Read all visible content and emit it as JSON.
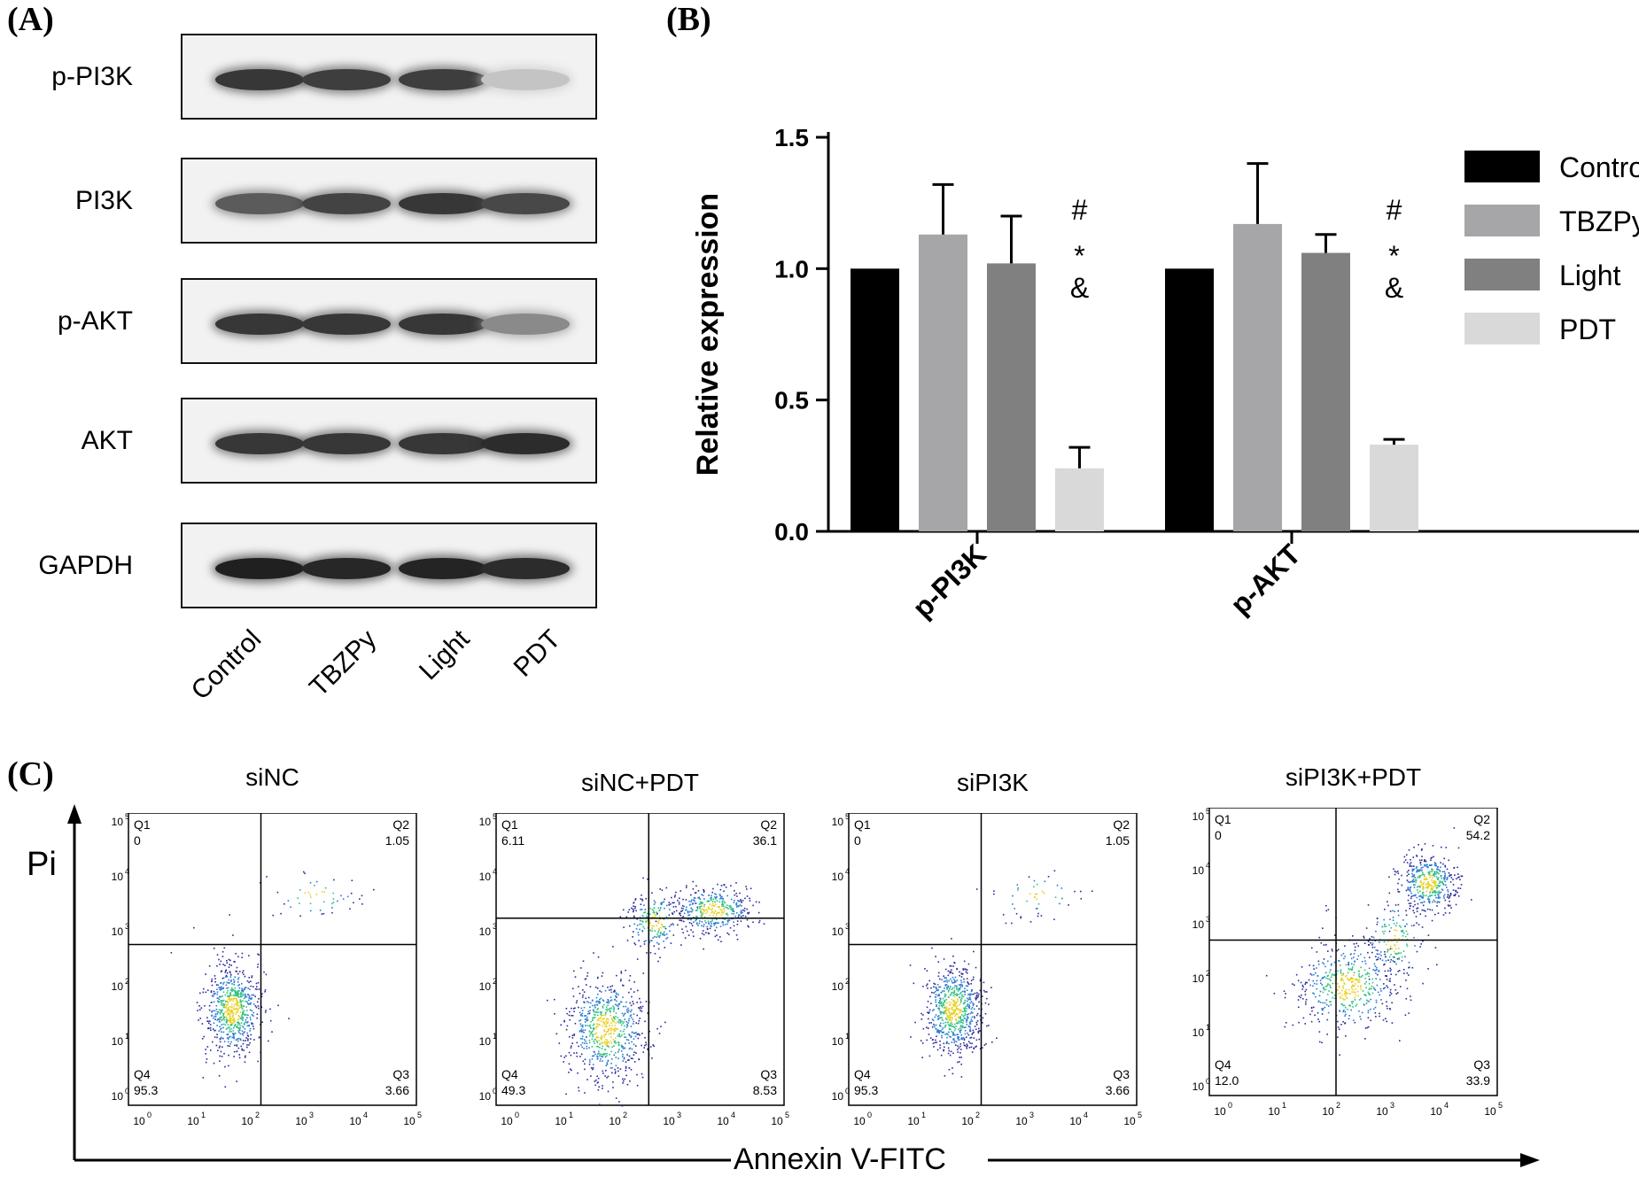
{
  "panels": {
    "a": "(A)",
    "b": "(B)",
    "c": "(C)"
  },
  "blot": {
    "rows": [
      {
        "label": "p-PI3K",
        "intensity": [
          0.85,
          0.82,
          0.82,
          0.25
        ]
      },
      {
        "label": "PI3K",
        "intensity": [
          0.7,
          0.8,
          0.85,
          0.78
        ]
      },
      {
        "label": "p-AKT",
        "intensity": [
          0.85,
          0.85,
          0.85,
          0.5
        ]
      },
      {
        "label": "AKT",
        "intensity": [
          0.85,
          0.85,
          0.85,
          0.9
        ]
      },
      {
        "label": "GAPDH",
        "intensity": [
          0.95,
          0.92,
          0.93,
          0.9
        ]
      }
    ],
    "lanes": [
      "Control",
      "TBZPy",
      "Light",
      "PDT"
    ]
  },
  "chart_data": {
    "type": "bar",
    "categories": [
      "p-PI3K",
      "p-AKT"
    ],
    "series": [
      {
        "name": "Control",
        "values": [
          1.0,
          1.0
        ],
        "errors": [
          0,
          0
        ],
        "color": "#000000"
      },
      {
        "name": "TBZPy",
        "values": [
          1.13,
          1.17
        ],
        "errors": [
          0.19,
          0.23
        ],
        "color": "#a6a6a8"
      },
      {
        "name": "Light",
        "values": [
          1.02,
          1.06
        ],
        "errors": [
          0.18,
          0.07
        ],
        "color": "#808080"
      },
      {
        "name": "PDT",
        "values": [
          0.24,
          0.33
        ],
        "errors": [
          0.08,
          0.02
        ],
        "color": "#d9d9d9"
      }
    ],
    "ylabel": "Relative expression",
    "ylim": [
      0,
      1.5
    ],
    "yticks": [
      "0.0",
      "0.5",
      "1.0",
      "1.5"
    ],
    "annotations": [
      "#",
      "*",
      "&"
    ],
    "legend_position": "right"
  },
  "flow": {
    "y_axis_label": "Pi",
    "x_axis_label": "Annexin V-FITC",
    "plots": [
      {
        "title": "siNC",
        "q1": "0",
        "q2": "1.05",
        "q3": "3.66",
        "q4": "95.3"
      },
      {
        "title": "siNC+PDT",
        "q1": "6.11",
        "q2": "36.1",
        "q3": "8.53",
        "q4": "49.3"
      },
      {
        "title": "siPI3K",
        "q1": "0",
        "q2": "1.05",
        "q3": "3.66",
        "q4": "95.3"
      },
      {
        "title": "siPI3K+PDT",
        "q1": "0",
        "q2": "54.2",
        "q3": "33.9",
        "q4": "12.0"
      }
    ],
    "quadrant_names": [
      "Q1",
      "Q2",
      "Q3",
      "Q4"
    ],
    "tick_labels": [
      "0",
      "1",
      "2",
      "3",
      "4",
      "5"
    ]
  }
}
